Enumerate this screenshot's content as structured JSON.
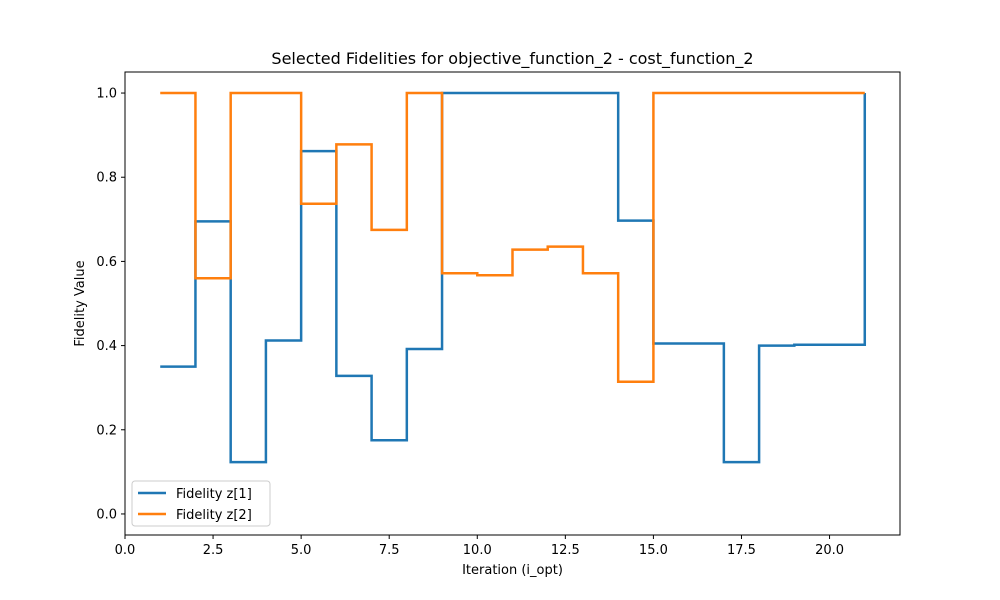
{
  "chart_data": {
    "type": "line",
    "step": "post",
    "title": "Selected Fidelities for objective_function_2 - cost_function_2",
    "xlabel": "Iteration (i_opt)",
    "ylabel": "Fidelity Value",
    "xlim": [
      0.0,
      22.0
    ],
    "ylim": [
      -0.05,
      1.05
    ],
    "xticks": [
      0.0,
      2.5,
      5.0,
      7.5,
      10.0,
      12.5,
      15.0,
      17.5,
      20.0
    ],
    "xtick_labels": [
      "0.0",
      "2.5",
      "5.0",
      "7.5",
      "10.0",
      "12.5",
      "15.0",
      "17.5",
      "20.0"
    ],
    "yticks": [
      0.0,
      0.2,
      0.4,
      0.6,
      0.8,
      1.0
    ],
    "ytick_labels": [
      "0.0",
      "0.2",
      "0.4",
      "0.6",
      "0.8",
      "1.0"
    ],
    "grid": false,
    "legend_position": "lower-left",
    "x": [
      1,
      2,
      3,
      4,
      5,
      6,
      7,
      8,
      9,
      10,
      11,
      12,
      13,
      14,
      15,
      16,
      17,
      18,
      19,
      20,
      21
    ],
    "series": [
      {
        "name": "Fidelity z[1]",
        "color": "#1f77b4",
        "values": [
          0.35,
          0.695,
          0.123,
          0.412,
          0.862,
          0.328,
          0.175,
          0.392,
          1.0,
          1.0,
          1.0,
          1.0,
          1.0,
          0.697,
          0.405,
          0.405,
          0.123,
          0.4,
          0.402,
          0.402,
          1.0
        ]
      },
      {
        "name": "Fidelity z[2]",
        "color": "#ff7f0e",
        "values": [
          1.0,
          0.56,
          1.0,
          1.0,
          0.737,
          0.878,
          0.675,
          1.0,
          0.572,
          0.567,
          0.628,
          0.635,
          0.572,
          0.314,
          1.0,
          1.0,
          1.0,
          1.0,
          1.0,
          1.0,
          1.0
        ]
      }
    ]
  }
}
